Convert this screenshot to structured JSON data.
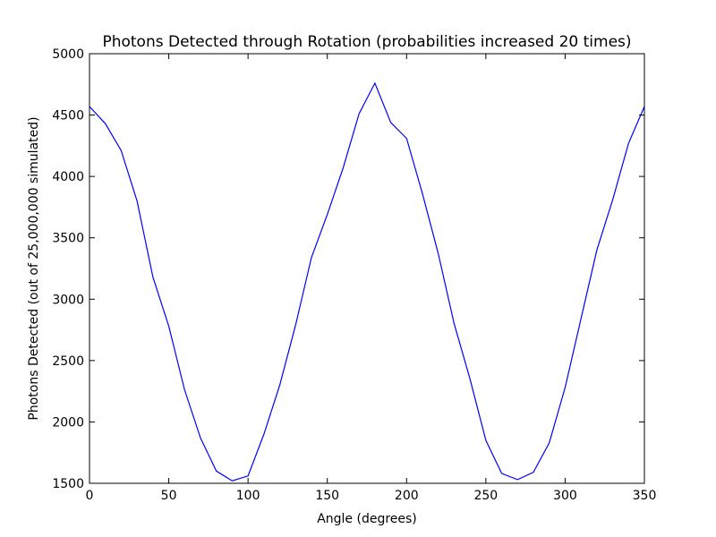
{
  "chart_data": {
    "type": "line",
    "title": "Photons Detected through Rotation (probabilities increased 20 times)",
    "xlabel": "Angle (degrees)",
    "ylabel": "Photons Detected (out of 25,000,000 simulated)",
    "xlim": [
      0,
      350
    ],
    "ylim": [
      1500,
      5000
    ],
    "xticks": [
      0,
      50,
      100,
      150,
      200,
      250,
      300,
      350
    ],
    "yticks": [
      1500,
      2000,
      2500,
      3000,
      3500,
      4000,
      4500,
      5000
    ],
    "grid": false,
    "series": [
      {
        "color": "#0000ff",
        "x": [
          0,
          10,
          20,
          30,
          40,
          50,
          60,
          70,
          80,
          90,
          100,
          110,
          120,
          130,
          140,
          150,
          160,
          170,
          180,
          190,
          200,
          210,
          220,
          230,
          240,
          250,
          260,
          270,
          280,
          290,
          300,
          310,
          320,
          330,
          340,
          350
        ],
        "y": [
          4570,
          4430,
          4210,
          3800,
          3180,
          2780,
          2260,
          1870,
          1600,
          1520,
          1560,
          1900,
          2300,
          2790,
          3340,
          3690,
          4070,
          4510,
          4760,
          4440,
          4310,
          3860,
          3370,
          2800,
          2350,
          1850,
          1580,
          1530,
          1590,
          1830,
          2280,
          2840,
          3400,
          3810,
          4270,
          4570
        ]
      }
    ]
  }
}
